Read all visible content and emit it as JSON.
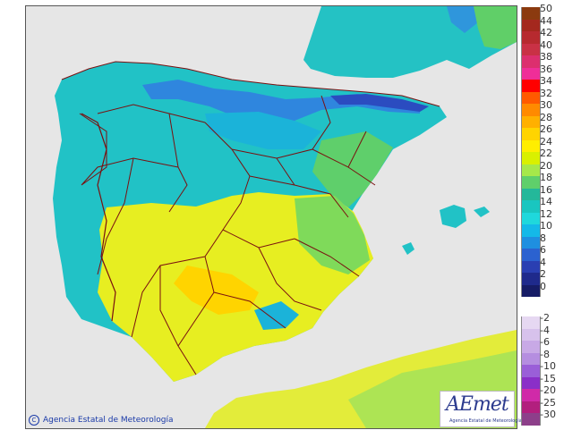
{
  "map": {
    "copyright": "Agencia Estatal de Meteorología",
    "copyright_symbol": "C",
    "logo_text": "AEmet",
    "logo_subtext": "Agencia Estatal de Meteorología"
  },
  "legend": {
    "positive": [
      {
        "label": "50",
        "color": "#8b3a0f"
      },
      {
        "label": "44",
        "color": "#a4281e"
      },
      {
        "label": "42",
        "color": "#b72a2f"
      },
      {
        "label": "40",
        "color": "#c93145"
      },
      {
        "label": "38",
        "color": "#dc2f6e"
      },
      {
        "label": "36",
        "color": "#ef2e98"
      },
      {
        "label": "34",
        "color": "#ff0000"
      },
      {
        "label": "32",
        "color": "#ff5a00"
      },
      {
        "label": "30",
        "color": "#ff8a00"
      },
      {
        "label": "28",
        "color": "#ffb000"
      },
      {
        "label": "26",
        "color": "#ffd400"
      },
      {
        "label": "24",
        "color": "#ffee00"
      },
      {
        "label": "22",
        "color": "#d9f000"
      },
      {
        "label": "20",
        "color": "#a6e84a"
      },
      {
        "label": "18",
        "color": "#5fcf6b"
      },
      {
        "label": "16",
        "color": "#24b89a"
      },
      {
        "label": "14",
        "color": "#19c6c0"
      },
      {
        "label": "12",
        "color": "#1fd8dc"
      },
      {
        "label": "10",
        "color": "#14b9e8"
      },
      {
        "label": "8",
        "color": "#1f8fe0"
      },
      {
        "label": "6",
        "color": "#2b62d0"
      },
      {
        "label": "4",
        "color": "#2a3fb2"
      },
      {
        "label": "2",
        "color": "#1f2a8c"
      },
      {
        "label": "0",
        "color": "#161c66"
      }
    ],
    "negative": [
      {
        "label": "-2",
        "color": "#e6d8f2"
      },
      {
        "label": "-4",
        "color": "#d7c2ec"
      },
      {
        "label": "-6",
        "color": "#c8a9e6"
      },
      {
        "label": "-8",
        "color": "#b58ee0"
      },
      {
        "label": "-10",
        "color": "#9a5fd8"
      },
      {
        "label": "-15",
        "color": "#8a2fc8"
      },
      {
        "label": "-20",
        "color": "#d02aa8"
      },
      {
        "label": "-25",
        "color": "#b21f7e"
      },
      {
        "label": "-30",
        "color": "#8d3f8a"
      }
    ]
  },
  "colors": {
    "sea": "#e6e6e6",
    "north": "#24c2c4",
    "south": "#e7ee21",
    "mountains": "#2e7bd6",
    "border": "#7a1010"
  }
}
